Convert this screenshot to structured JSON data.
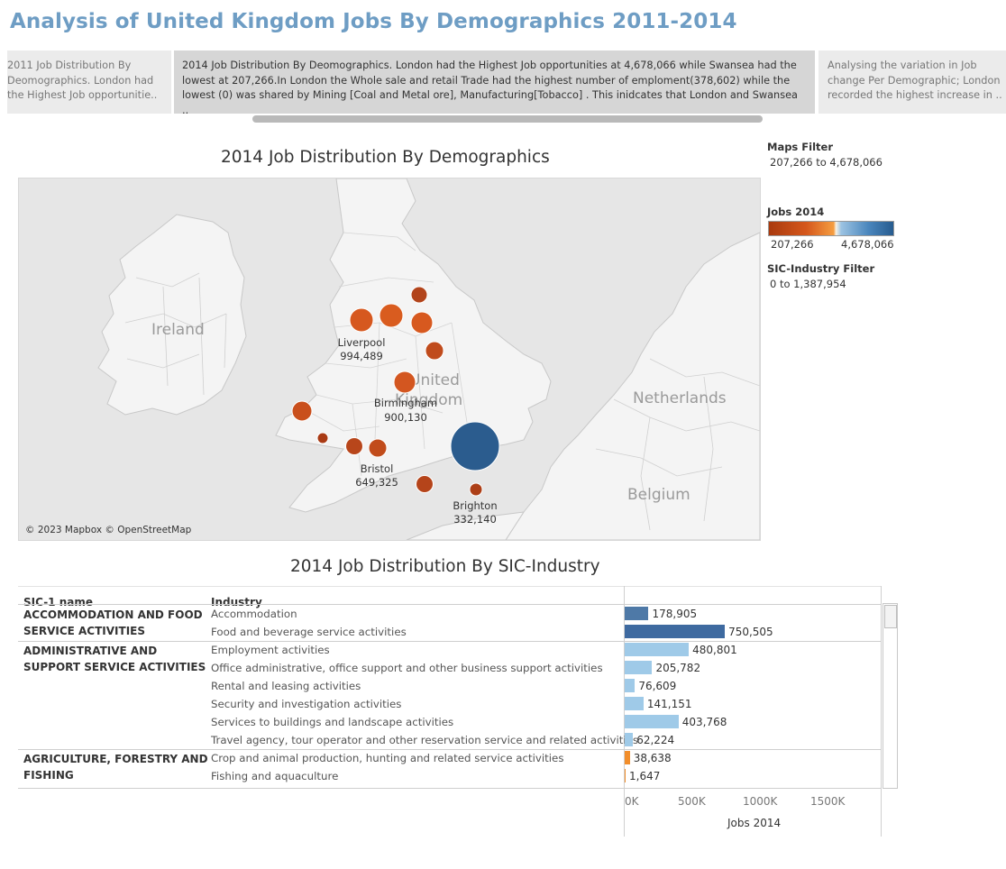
{
  "title": "Analysis of United Kingdom Jobs By Demographics 2011-2014",
  "story_points": [
    {
      "text": "2011 Job Distribution By Deomographics.  London had the Highest Job opportunitie.."
    },
    {
      "text": "2014 Job Distribution By Deomographics.  London had the Highest Job opportunities at 4,678,066 while Swansea had the lowest at 207,266.In London the Whole sale and retail Trade had the highest number of emploment(378,602) while the lowest (0) was shared by Mining [Coal and Metal ore], Manufacturing[Tobacco] . This inidcates that London and Swansea .."
    },
    {
      "text": "Analysing the variation in Job change Per Demographic; London recorded the highest increase in .."
    }
  ],
  "map": {
    "title": "2014 Job Distribution By Demographics",
    "country_labels": [
      "Ireland",
      "United",
      "Kingdom",
      "Netherlands",
      "Belgium"
    ],
    "city_labels": [
      {
        "name": "Liverpool",
        "value": "994,489"
      },
      {
        "name": "Birmingham",
        "value": "900,130"
      },
      {
        "name": "Bristol",
        "value": "649,325"
      },
      {
        "name": "Brighton",
        "value": "332,140"
      }
    ],
    "copyright": "© 2023 Mapbox © OpenStreetMap",
    "colors": {
      "low": "#b2441b",
      "mid": "#d85a1f",
      "high": "#2b5c8e",
      "land": "#f4f4f4",
      "sea": "#e6e6e6"
    }
  },
  "filters": {
    "maps_filter_label": "Maps Filter",
    "maps_filter_range": "207,266 to 4,678,066",
    "legend_title": "Jobs 2014",
    "legend_min": "207,266",
    "legend_max": "4,678,066",
    "sic_filter_label": "SIC-Industry Filter",
    "sic_filter_range": "0 to 1,387,954"
  },
  "table": {
    "title": "2014 Job Distribution By SIC-Industry",
    "col_sic": "SIC-1 name",
    "col_industry": "Industry",
    "axis_title": "Jobs 2014",
    "axis_ticks": [
      "0K",
      "500K",
      "1000K",
      "1500K"
    ]
  },
  "chart_data": {
    "type": "bar",
    "title": "2014 Job Distribution By SIC-Industry",
    "xlabel": "Jobs 2014",
    "xlim": [
      0,
      1500000
    ],
    "groups": [
      {
        "sic": "ACCOMMODATION AND FOOD SERVICE ACTIVITIES",
        "rows": [
          {
            "industry": "Accommodation",
            "value": 178905,
            "label": "178,905",
            "color": "#4e79a7"
          },
          {
            "industry": "Food and beverage service activities",
            "value": 750505,
            "label": "750,505",
            "color": "#3e6aa0"
          }
        ]
      },
      {
        "sic": "ADMINISTRATIVE AND SUPPORT SERVICE ACTIVITIES",
        "rows": [
          {
            "industry": "Employment activities",
            "value": 480801,
            "label": "480,801",
            "color": "#9fcae8"
          },
          {
            "industry": "Office administrative, office support and other business support activities",
            "value": 205782,
            "label": "205,782",
            "color": "#9fcae8"
          },
          {
            "industry": "Rental and leasing activities",
            "value": 76609,
            "label": "76,609",
            "color": "#9fcae8"
          },
          {
            "industry": "Security and investigation activities",
            "value": 141151,
            "label": "141,151",
            "color": "#9fcae8"
          },
          {
            "industry": "Services to buildings and landscape activities",
            "value": 403768,
            "label": "403,768",
            "color": "#9fcae8"
          },
          {
            "industry": "Travel agency, tour operator and other reservation service and related activities",
            "value": 62224,
            "label": "62,224",
            "color": "#9fcae8"
          }
        ]
      },
      {
        "sic": "AGRICULTURE, FORESTRY AND FISHING",
        "rows": [
          {
            "industry": "Crop and animal production, hunting and related service activities",
            "value": 38638,
            "label": "38,638",
            "color": "#f28e2b"
          },
          {
            "industry": "Fishing and aquaculture",
            "value": 1647,
            "label": "1,647",
            "color": "#f28e2b"
          }
        ]
      }
    ]
  }
}
